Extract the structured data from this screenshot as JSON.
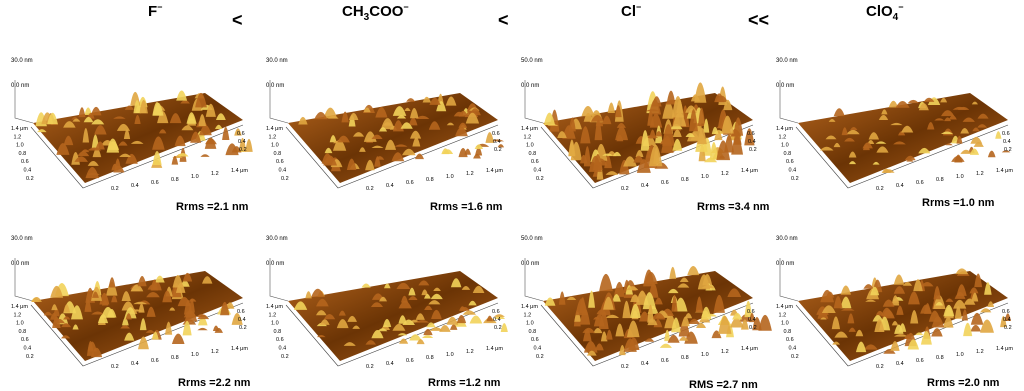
{
  "header": {
    "ions": [
      {
        "main": "F",
        "sub": "",
        "sup": "−"
      },
      {
        "main": "CH",
        "sub": "3",
        "main2": "COO",
        "sup": "−"
      },
      {
        "main": "Cl",
        "sub": "",
        "sup": "−"
      },
      {
        "main": "ClO",
        "sub": "4",
        "sup": "−"
      }
    ],
    "operators": [
      "<",
      "<",
      "<<"
    ]
  },
  "axes": {
    "y_ticks": [
      "1.4 μm",
      "1.2",
      "1.0",
      "0.8",
      "0.6",
      "0.4",
      "0.2"
    ],
    "x_ticks": [
      "0.2",
      "0.4",
      "0.6",
      "0.8",
      "1.0",
      "1.2",
      "1.4 μm"
    ],
    "r_ticks": [
      "0.6",
      "0.4",
      "0.2"
    ]
  },
  "panels": [
    {
      "z_top": "30.0 nm",
      "z_mid": "0.0 nm",
      "rms": "Rrms =2.1 nm",
      "roughness": 2.1
    },
    {
      "z_top": "30.0 nm",
      "z_mid": "0.0 nm",
      "rms": "Rrms =1.6 nm",
      "roughness": 1.6
    },
    {
      "z_top": "50.0 nm",
      "z_mid": "0.0 nm",
      "rms": "Rrms =3.4 nm",
      "roughness": 3.4
    },
    {
      "z_top": "30.0 nm",
      "z_mid": "0.0 nm",
      "rms": "Rrms =1.0 nm",
      "roughness": 1.0
    },
    {
      "z_top": "30.0 nm",
      "z_mid": "0.0 nm",
      "rms": "Rrms =2.2 nm",
      "roughness": 2.2
    },
    {
      "z_top": "30.0 nm",
      "z_mid": "0.0 nm",
      "rms": "Rrms =1.2 nm",
      "roughness": 1.2
    },
    {
      "z_top": "50.0 nm",
      "z_mid": "0.0 nm",
      "rms": "RMS =2.7 nm",
      "roughness": 2.7
    },
    {
      "z_top": "30.0 nm",
      "z_mid": "0.0 nm",
      "rms": "Rrms =2.0 nm",
      "roughness": 2.0
    }
  ],
  "colors": {
    "surface_dark": "#6b3405",
    "surface_mid": "#b5651d",
    "surface_light": "#e0a640",
    "highlight": "#f2d35a"
  }
}
